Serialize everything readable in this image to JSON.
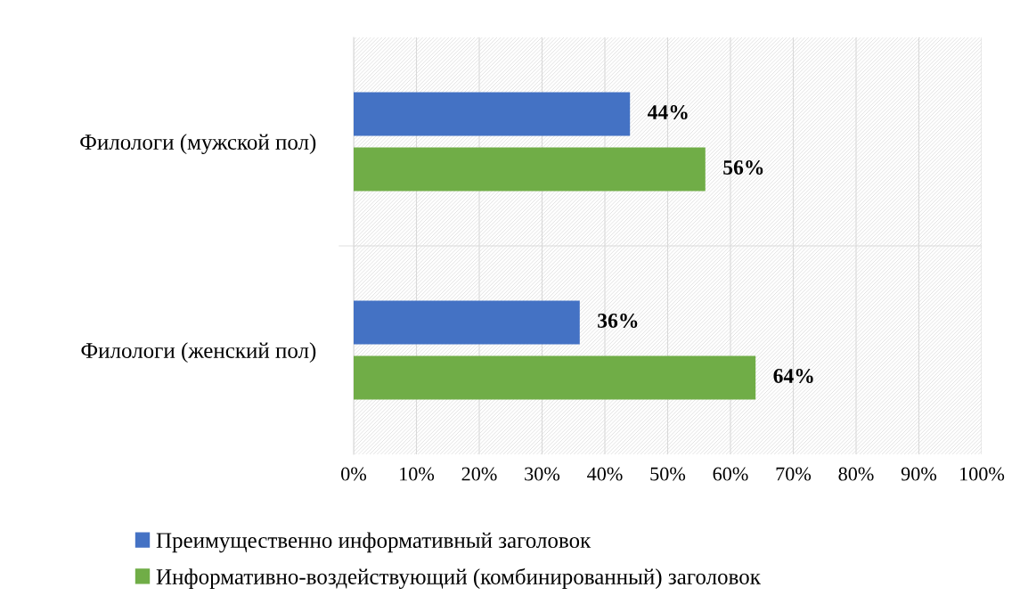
{
  "chart_data": {
    "type": "bar",
    "orientation": "horizontal",
    "categories": [
      "Филологи (мужской пол)",
      "Филологи (женский пол)"
    ],
    "series": [
      {
        "name": "Преимущественно информативный заголовок",
        "color": "#4472c4",
        "values": [
          44,
          36
        ],
        "value_labels": [
          "44%",
          "36%"
        ]
      },
      {
        "name": "Информативно-воздействующий (комбинированный) заголовок",
        "color": "#70ad47",
        "values": [
          56,
          64
        ],
        "value_labels": [
          "56%",
          "64%"
        ]
      }
    ],
    "xlim": [
      0,
      100
    ],
    "xticks": [
      {
        "value": 0,
        "label": "0%"
      },
      {
        "value": 10,
        "label": "10%"
      },
      {
        "value": 20,
        "label": "20%"
      },
      {
        "value": 30,
        "label": "30%"
      },
      {
        "value": 40,
        "label": "40%"
      },
      {
        "value": 50,
        "label": "50%"
      },
      {
        "value": 60,
        "label": "60%"
      },
      {
        "value": 70,
        "label": "70%"
      },
      {
        "value": 80,
        "label": "80%"
      },
      {
        "value": 90,
        "label": "90%"
      },
      {
        "value": 100,
        "label": "100%"
      }
    ],
    "grid": "x",
    "legend": "bottom"
  }
}
